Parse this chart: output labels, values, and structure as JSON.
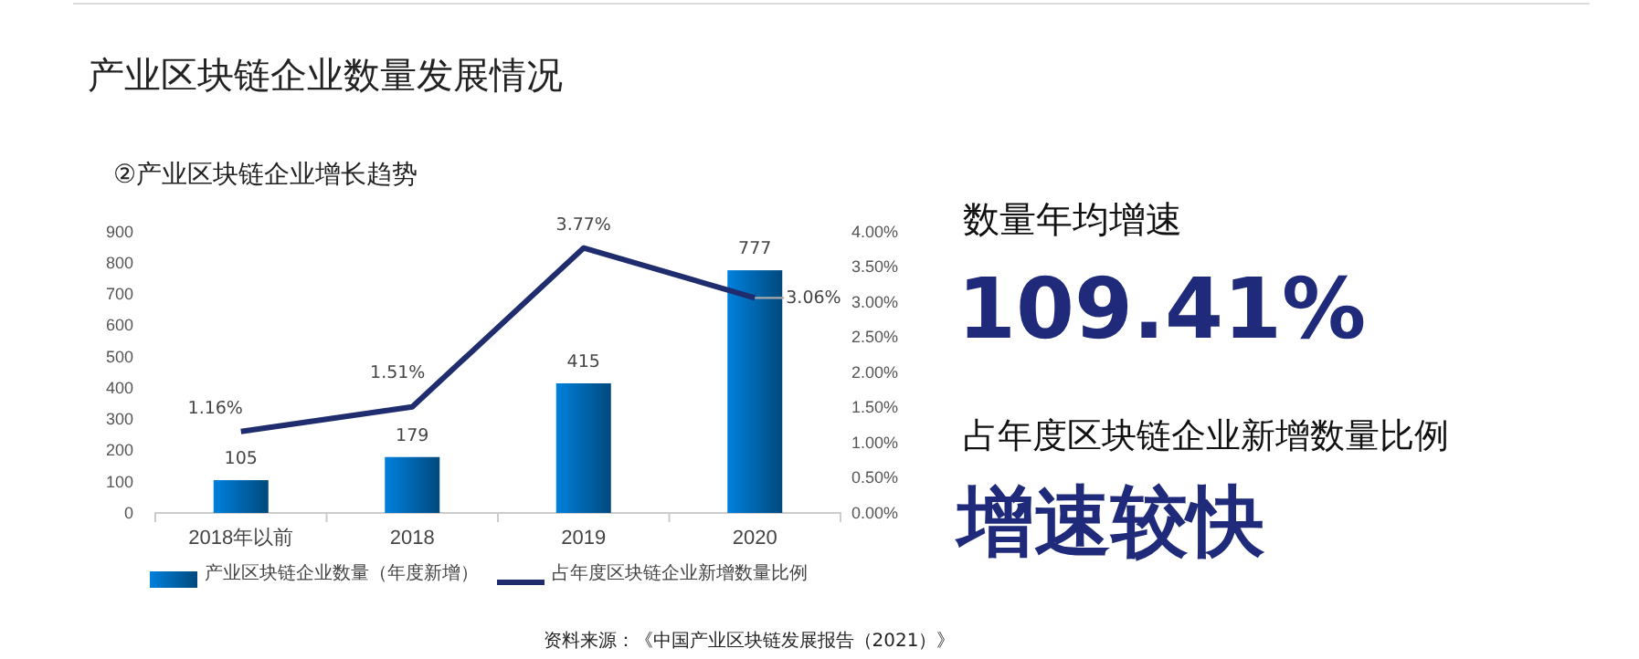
{
  "chart_data": {
    "type": "bar",
    "title": "产业区块链企业数量发展情况",
    "subtitle": "②产业区块链企业增长趋势",
    "categories": [
      "2018年以前",
      "2018",
      "2019",
      "2020"
    ],
    "series": [
      {
        "name": "产业区块链企业数量（年度新增）",
        "color": "#0070c0",
        "values": [
          105,
          179,
          415,
          777
        ],
        "value_labels": [
          "105",
          "179",
          "415",
          "777"
        ]
      },
      {
        "name": "占年度区块链企业新增数量比例",
        "type": "line",
        "axis": "y2",
        "color": "#1f2d6e",
        "values": [
          1.16,
          1.51,
          3.77,
          3.06
        ],
        "value_labels": [
          "1.16%",
          "1.51%",
          "3.77%",
          "3.06%"
        ]
      }
    ],
    "ylim": [
      0,
      900
    ],
    "yticks": [
      0,
      100,
      200,
      300,
      400,
      500,
      600,
      700,
      800,
      900
    ],
    "y2lim": [
      0,
      4
    ],
    "y2ticks": [
      {
        "value": 0,
        "label": "0.00%"
      },
      {
        "value": 0.5,
        "label": "0.50%"
      },
      {
        "value": 1,
        "label": "1.00%"
      },
      {
        "value": 1.5,
        "label": "1.50%"
      },
      {
        "value": 2,
        "label": "2.00%"
      },
      {
        "value": 2.5,
        "label": "2.50%"
      },
      {
        "value": 3,
        "label": "3.00%"
      },
      {
        "value": 3.5,
        "label": "3.50%"
      },
      {
        "value": 4,
        "label": "4.00%"
      }
    ],
    "grid": false,
    "legend": "bottom",
    "annotations": [
      "数量年均增速",
      "109.41%",
      "占年度区块链企业新增数量比例",
      "增速较快",
      "资料来源：《中国产业区块链发展报告（2021）》"
    ]
  }
}
